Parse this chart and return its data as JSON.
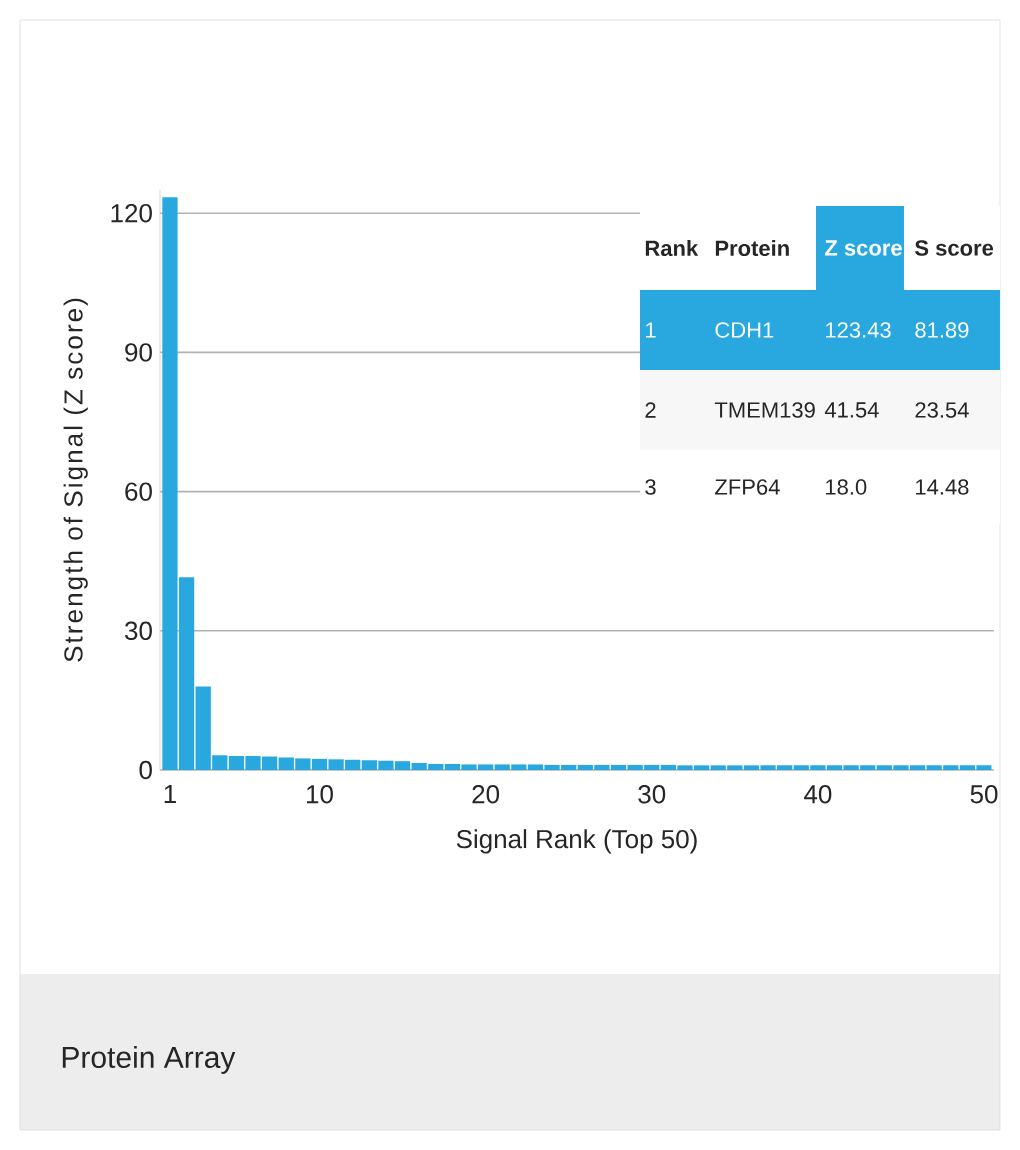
{
  "chart_data": {
    "type": "bar",
    "xlabel": "Signal Rank (Top 50)",
    "ylabel": "Strength of Signal (Z score)",
    "color": "#29a8e0",
    "x": [
      1,
      2,
      3,
      4,
      5,
      6,
      7,
      8,
      9,
      10,
      11,
      12,
      13,
      14,
      15,
      16,
      17,
      18,
      19,
      20,
      21,
      22,
      23,
      24,
      25,
      26,
      27,
      28,
      29,
      30,
      31,
      32,
      33,
      34,
      35,
      36,
      37,
      38,
      39,
      40,
      41,
      42,
      43,
      44,
      45,
      46,
      47,
      48,
      49,
      50
    ],
    "values": [
      123.43,
      41.54,
      18.0,
      3.2,
      3.0,
      3.0,
      2.9,
      2.7,
      2.5,
      2.4,
      2.3,
      2.2,
      2.1,
      2.0,
      1.9,
      1.5,
      1.3,
      1.3,
      1.2,
      1.2,
      1.2,
      1.2,
      1.2,
      1.1,
      1.1,
      1.1,
      1.1,
      1.1,
      1.1,
      1.1,
      1.1,
      1.0,
      1.0,
      1.0,
      1.0,
      1.0,
      1.0,
      1.0,
      1.0,
      1.0,
      1.0,
      1.0,
      1.0,
      1.0,
      1.0,
      1.0,
      1.0,
      1.0,
      1.0,
      1.0
    ],
    "xlim": [
      0.4,
      50.6
    ],
    "ylim": [
      0,
      125
    ],
    "xticks": [
      1,
      10,
      20,
      30,
      40,
      50
    ],
    "yticks": [
      0,
      30,
      60,
      90,
      120
    ],
    "grid": "y",
    "annotations": [
      "Rank",
      "Protein",
      "Z score",
      "S score",
      "1",
      "CDH1",
      "123.43",
      "81.89",
      "2",
      "TMEM139",
      "41.54",
      "23.54",
      "3",
      "ZFP64",
      "18.0",
      "14.48",
      "Protein Array"
    ]
  }
}
